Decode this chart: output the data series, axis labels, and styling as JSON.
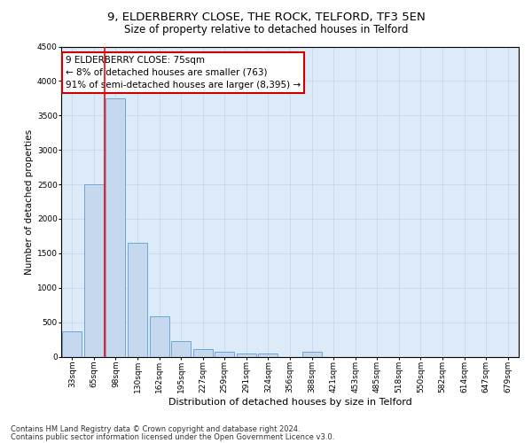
{
  "title1": "9, ELDERBERRY CLOSE, THE ROCK, TELFORD, TF3 5EN",
  "title2": "Size of property relative to detached houses in Telford",
  "xlabel": "Distribution of detached houses by size in Telford",
  "ylabel": "Number of detached properties",
  "categories": [
    "33sqm",
    "65sqm",
    "98sqm",
    "130sqm",
    "162sqm",
    "195sqm",
    "227sqm",
    "259sqm",
    "291sqm",
    "324sqm",
    "356sqm",
    "388sqm",
    "421sqm",
    "453sqm",
    "485sqm",
    "518sqm",
    "550sqm",
    "582sqm",
    "614sqm",
    "647sqm",
    "679sqm"
  ],
  "values": [
    370,
    2500,
    3750,
    1650,
    590,
    230,
    110,
    65,
    50,
    40,
    0,
    70,
    0,
    0,
    0,
    0,
    0,
    0,
    0,
    0,
    0
  ],
  "bar_color": "#c5d8ee",
  "bar_edge_color": "#5a9fd4",
  "red_line_x": 1.5,
  "annotation_text": "9 ELDERBERRY CLOSE: 75sqm\n← 8% of detached houses are smaller (763)\n91% of semi-detached houses are larger (8,395) →",
  "annotation_box_color": "#ffffff",
  "annotation_box_edge": "#cc0000",
  "ylim": [
    0,
    4500
  ],
  "yticks": [
    0,
    500,
    1000,
    1500,
    2000,
    2500,
    3000,
    3500,
    4000,
    4500
  ],
  "grid_color": "#c8d8e8",
  "bg_color": "#ddeaf7",
  "footer1": "Contains HM Land Registry data © Crown copyright and database right 2024.",
  "footer2": "Contains public sector information licensed under the Open Government Licence v3.0.",
  "title1_fontsize": 9.5,
  "title2_fontsize": 8.5,
  "xlabel_fontsize": 8,
  "ylabel_fontsize": 7.5,
  "annot_fontsize": 7.5,
  "tick_fontsize": 6.5,
  "footer_fontsize": 6
}
